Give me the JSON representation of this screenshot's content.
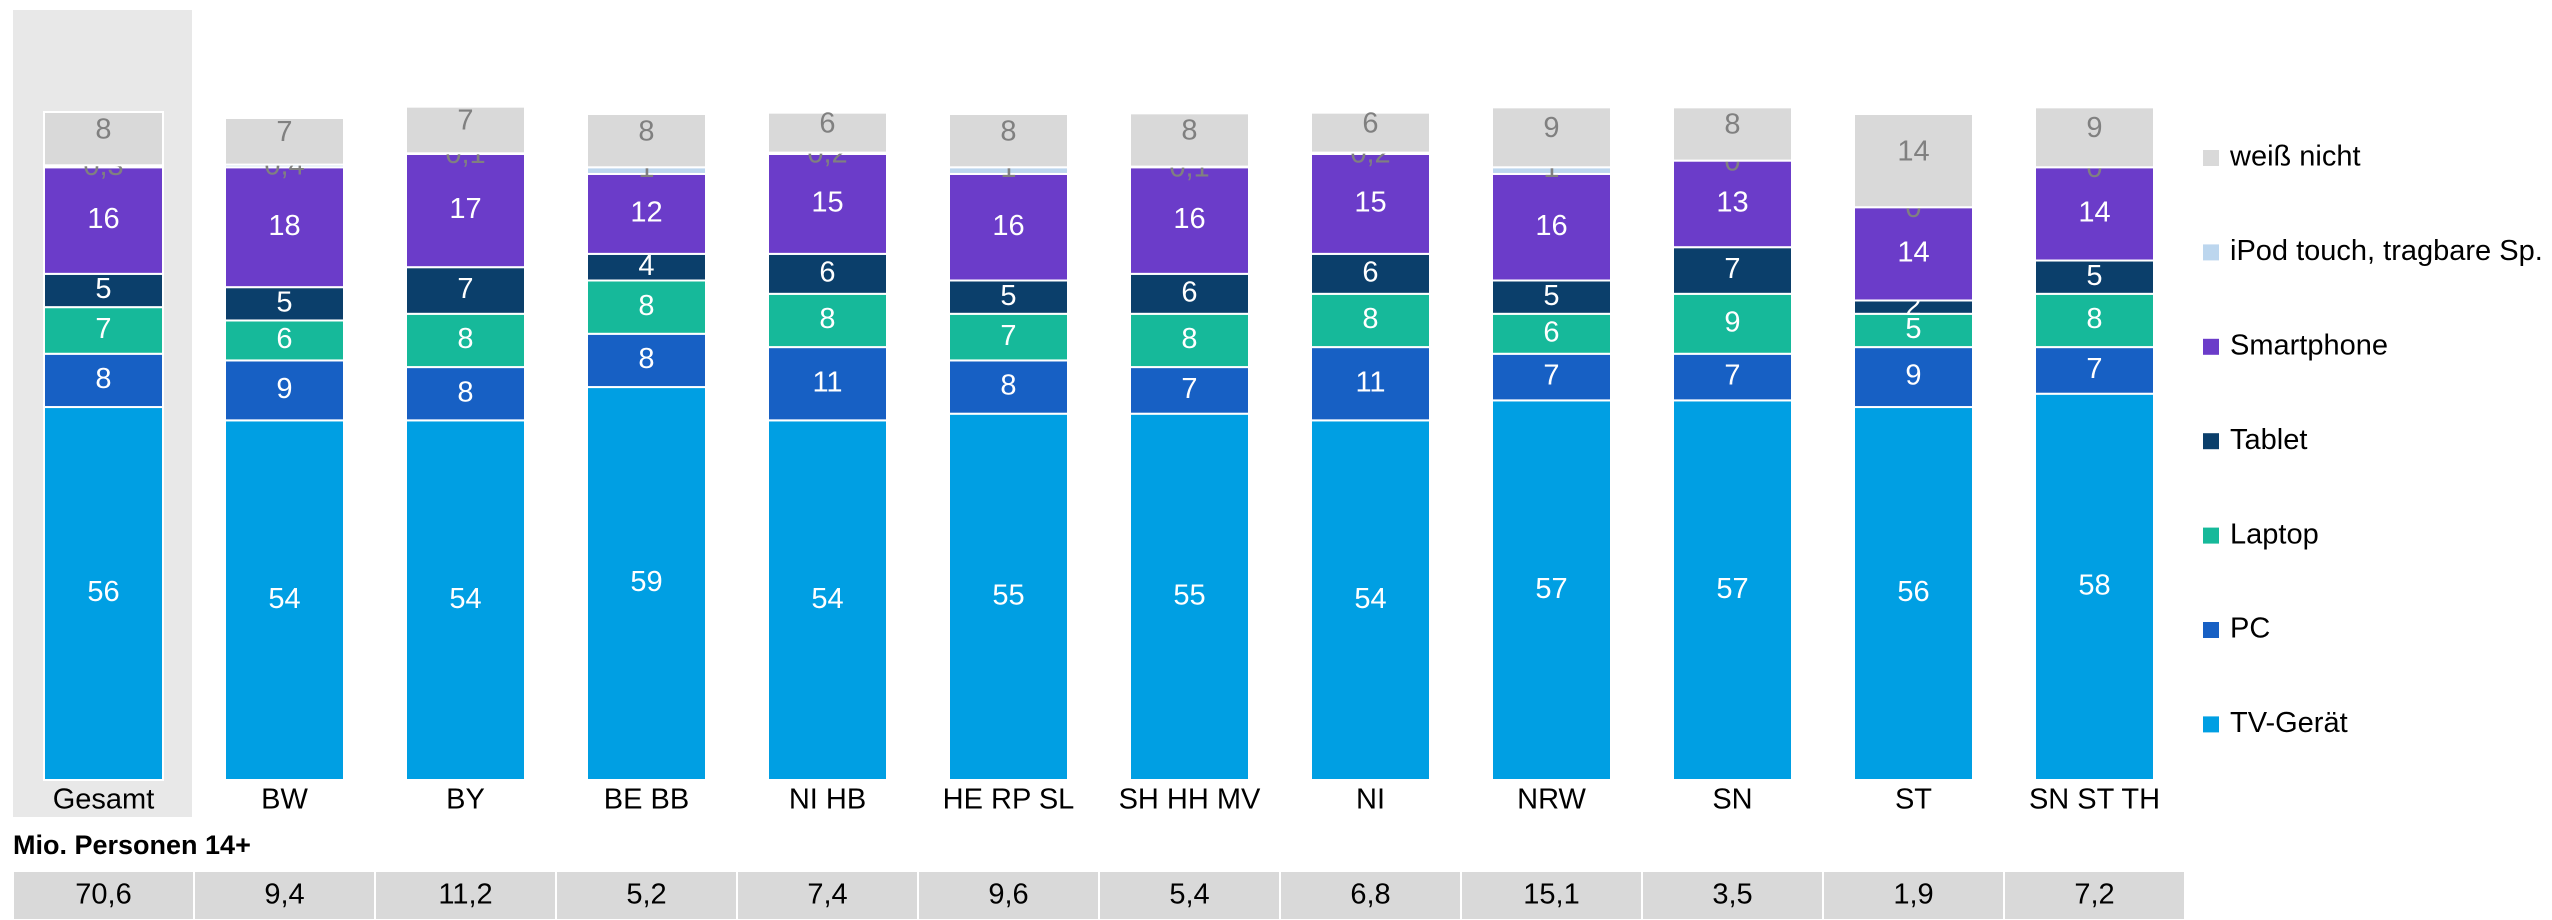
{
  "chart_data": {
    "type": "stacked_bar",
    "categories": [
      "Gesamt",
      "BW",
      "BY",
      "BE BB",
      "NI HB",
      "HE RP SL",
      "SH HH MV",
      "NI",
      "NRW",
      "SN",
      "ST",
      "SN ST TH"
    ],
    "series": [
      {
        "name": "TV-Gerät",
        "color": "#009fe3",
        "values": [
          56,
          54,
          54,
          59,
          54,
          55,
          55,
          54,
          57,
          57,
          56,
          58
        ]
      },
      {
        "name": "PC",
        "color": "#1760c4",
        "values": [
          8,
          9,
          8,
          8,
          11,
          8,
          7,
          11,
          7,
          7,
          9,
          7
        ]
      },
      {
        "name": "Laptop",
        "color": "#16b99a",
        "values": [
          7,
          6,
          8,
          8,
          8,
          7,
          8,
          8,
          6,
          9,
          5,
          8
        ]
      },
      {
        "name": "Tablet",
        "color": "#0b3f6b",
        "values": [
          5,
          5,
          7,
          4,
          6,
          5,
          6,
          6,
          5,
          7,
          2,
          5
        ]
      },
      {
        "name": "Smartphone",
        "color": "#6b3cc9",
        "values": [
          16,
          18,
          17,
          12,
          15,
          16,
          16,
          15,
          16,
          13,
          14,
          14
        ]
      },
      {
        "name": "iPod touch, tragbare Sp.",
        "color": "#bcd6ee",
        "values": [
          0.3,
          0.4,
          0.1,
          1,
          0.2,
          1,
          0.1,
          0.2,
          1,
          0,
          0,
          0
        ],
        "value_labels": [
          "0,3",
          "0,4",
          "0,1",
          "1",
          "0,2",
          "1",
          "0,1",
          "0,2",
          "1",
          "0",
          "0",
          "0"
        ]
      },
      {
        "name": "weiß nicht",
        "color": "#d9d9d9",
        "values": [
          8,
          7,
          7,
          8,
          6,
          8,
          8,
          6,
          9,
          8,
          14,
          9
        ]
      }
    ],
    "table": {
      "title": "Mio. Personen 14+",
      "values": [
        "70,6",
        "9,4",
        "11,2",
        "5,2",
        "7,4",
        "9,6",
        "5,4",
        "6,8",
        "15,1",
        "3,5",
        "1,9",
        "7,2"
      ]
    }
  }
}
